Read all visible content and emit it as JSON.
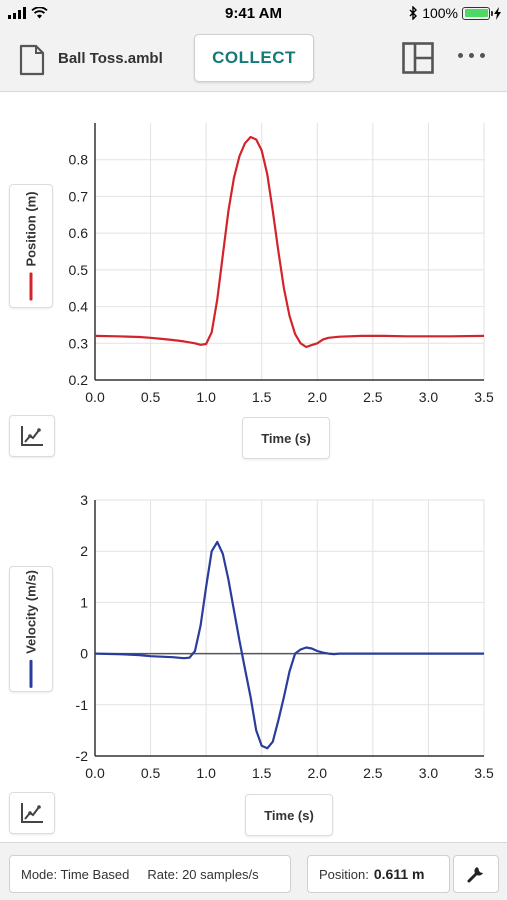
{
  "status_bar": {
    "time": "9:41 AM",
    "battery_text": "100%"
  },
  "toolbar": {
    "file_name": "Ball Toss.ambl",
    "collect_label": "COLLECT"
  },
  "graphs": [
    {
      "y_axis_label": "Position (m)",
      "x_axis_label": "Time (s)",
      "series_color": "#d3232b"
    },
    {
      "y_axis_label": "Velocity (m/s)",
      "x_axis_label": "Time (s)",
      "series_color": "#2a3c9d"
    }
  ],
  "footer": {
    "mode_text": "Mode: Time Based",
    "rate_text": "Rate: 20 samples/s",
    "position_label": "Position:",
    "position_value": "0.611 m"
  },
  "chart_data": [
    {
      "type": "line",
      "xlabel": "Time (s)",
      "ylabel": "Position (m)",
      "xlim": [
        0,
        3.5
      ],
      "ylim": [
        0.2,
        0.9
      ],
      "x_ticks": [
        "0.0",
        "0.5",
        "1.0",
        "1.5",
        "2.0",
        "2.5",
        "3.0",
        "3.5"
      ],
      "y_ticks": [
        "0.2",
        "0.3",
        "0.4",
        "0.5",
        "0.6",
        "0.7",
        "0.8"
      ],
      "grid": true,
      "series": [
        {
          "color": "#d3232b",
          "x": [
            0,
            0.2,
            0.4,
            0.5,
            0.6,
            0.7,
            0.8,
            0.9,
            0.95,
            1.0,
            1.05,
            1.1,
            1.15,
            1.2,
            1.25,
            1.3,
            1.35,
            1.4,
            1.45,
            1.5,
            1.55,
            1.6,
            1.65,
            1.7,
            1.75,
            1.8,
            1.85,
            1.9,
            1.95,
            2.0,
            2.05,
            2.1,
            2.2,
            2.4,
            2.6,
            2.8,
            3.0,
            3.2,
            3.5
          ],
          "y": [
            0.32,
            0.319,
            0.317,
            0.315,
            0.312,
            0.309,
            0.305,
            0.3,
            0.296,
            0.298,
            0.33,
            0.42,
            0.54,
            0.66,
            0.75,
            0.81,
            0.845,
            0.862,
            0.855,
            0.825,
            0.76,
            0.66,
            0.55,
            0.45,
            0.375,
            0.325,
            0.3,
            0.29,
            0.295,
            0.3,
            0.31,
            0.315,
            0.318,
            0.32,
            0.32,
            0.319,
            0.319,
            0.319,
            0.32
          ]
        }
      ]
    },
    {
      "type": "line",
      "xlabel": "Time (s)",
      "ylabel": "Velocity (m/s)",
      "xlim": [
        0,
        3.5
      ],
      "ylim": [
        -2,
        3
      ],
      "x_ticks": [
        "0.0",
        "0.5",
        "1.0",
        "1.5",
        "2.0",
        "2.5",
        "3.0",
        "3.5"
      ],
      "y_ticks": [
        "-2",
        "-1",
        "0",
        "1",
        "2",
        "3"
      ],
      "grid": true,
      "zero_line": true,
      "series": [
        {
          "color": "#2a3c9d",
          "x": [
            0,
            0.2,
            0.4,
            0.5,
            0.6,
            0.7,
            0.8,
            0.85,
            0.9,
            0.95,
            1.0,
            1.05,
            1.1,
            1.15,
            1.2,
            1.25,
            1.3,
            1.35,
            1.4,
            1.45,
            1.5,
            1.55,
            1.6,
            1.65,
            1.7,
            1.75,
            1.8,
            1.85,
            1.9,
            1.95,
            2.0,
            2.05,
            2.1,
            2.15,
            2.2,
            2.4,
            2.6,
            2.8,
            3.0,
            3.2,
            3.5
          ],
          "y": [
            0,
            -0.01,
            -0.03,
            -0.05,
            -0.06,
            -0.07,
            -0.09,
            -0.08,
            0.05,
            0.55,
            1.3,
            2.0,
            2.18,
            1.95,
            1.45,
            0.85,
            0.25,
            -0.3,
            -0.85,
            -1.5,
            -1.8,
            -1.85,
            -1.72,
            -1.3,
            -0.85,
            -0.35,
            0.0,
            0.08,
            0.12,
            0.1,
            0.05,
            0.02,
            0.0,
            -0.01,
            0,
            0,
            0,
            0,
            0,
            0,
            0
          ]
        }
      ]
    }
  ]
}
